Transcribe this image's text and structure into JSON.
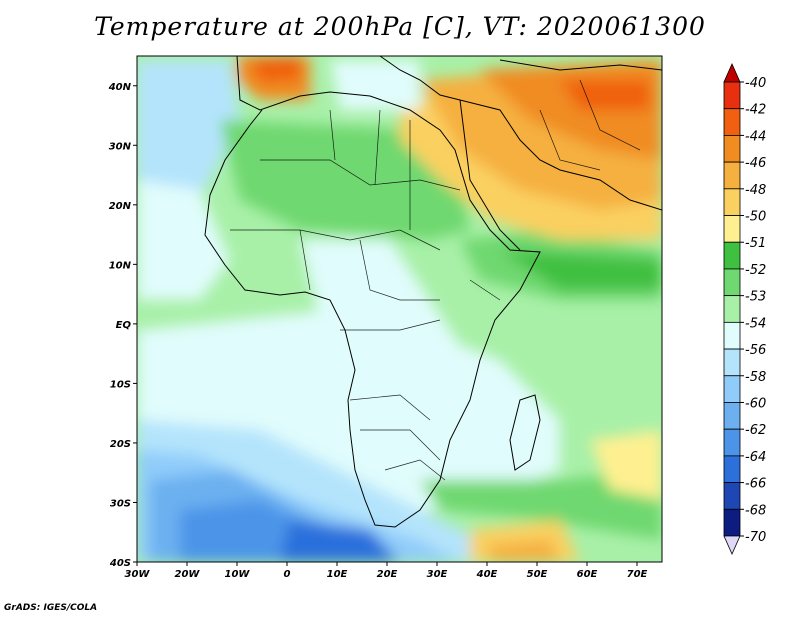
{
  "title": "Temperature at 200hPa [C], VT: 2020061300",
  "credit": "GrADS: IGES/COLA",
  "map": {
    "projection": "latlon",
    "lon_range": [
      -30,
      75
    ],
    "lat_range": [
      -40,
      45
    ],
    "lon_ticks": [
      "30W",
      "20W",
      "10W",
      "0",
      "10E",
      "20E",
      "30E",
      "40E",
      "50E",
      "60E",
      "70E"
    ],
    "lat_ticks": [
      "40S",
      "30S",
      "20S",
      "10S",
      "EQ",
      "10N",
      "20N",
      "30N",
      "40N"
    ]
  },
  "colorbar": {
    "levels": [
      "-40",
      "-42",
      "-44",
      "-46",
      "-48",
      "-50",
      "-51",
      "-52",
      "-53",
      "-54",
      "-56",
      "-58",
      "-60",
      "-62",
      "-64",
      "-66",
      "-68",
      "-70"
    ],
    "colors": [
      "#c00000",
      "#e83010",
      "#f06010",
      "#f08c20",
      "#f5b040",
      "#fad060",
      "#fef090",
      "#40c040",
      "#70d870",
      "#a8f0a8",
      "#e0fcfc",
      "#b4e4fc",
      "#90ccfa",
      "#6cb0f0",
      "#4c94e8",
      "#2c70dc",
      "#1e46b4",
      "#0c1c80",
      "#e0d8f8"
    ]
  },
  "chart_data": {
    "type": "heatmap",
    "title": "Temperature at 200hPa [C], VT: 2020061300",
    "variable": "Temperature",
    "level": "200hPa",
    "units": "C",
    "valid_time": "2020061300",
    "xlim": [
      -30,
      75
    ],
    "ylim": [
      -40,
      45
    ],
    "contour_levels": [
      -70,
      -68,
      -66,
      -64,
      -62,
      -60,
      -58,
      -56,
      -54,
      -53,
      -52,
      -51,
      -50,
      -48,
      -46,
      -44,
      -42,
      -40
    ]
  }
}
